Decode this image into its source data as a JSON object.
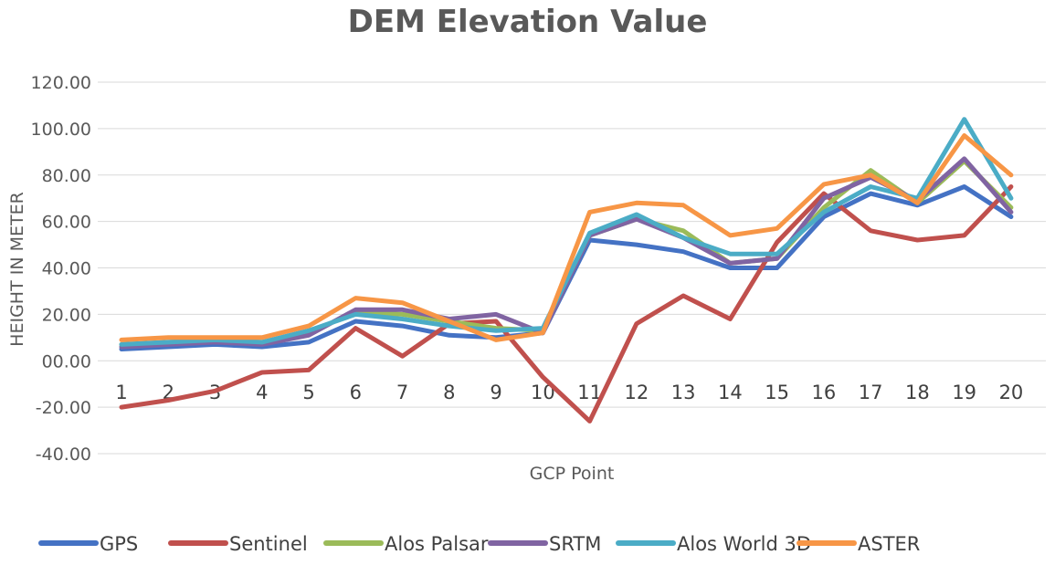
{
  "chart_data": {
    "type": "line",
    "title": "DEM Elevation Value",
    "xlabel": "GCP Point",
    "ylabel": "HEIGHT IN METER",
    "categories": [
      "1",
      "2",
      "3",
      "4",
      "5",
      "6",
      "7",
      "8",
      "9",
      "10",
      "11",
      "12",
      "13",
      "14",
      "15",
      "16",
      "17",
      "18",
      "19",
      "20"
    ],
    "y_tick_labels": [
      "-40.00",
      "-20.00",
      "00.00",
      "20.00",
      "40.00",
      "60.00",
      "80.00",
      "100.00",
      "120.00"
    ],
    "ylim": [
      -40,
      120
    ],
    "grid": true,
    "legend_position": "bottom",
    "series": [
      {
        "name": "GPS",
        "color": "#4472C4",
        "values": [
          5,
          6,
          7,
          6,
          8,
          17,
          15,
          11,
          10,
          12,
          52,
          50,
          47,
          40,
          40,
          62,
          72,
          67,
          75,
          62
        ]
      },
      {
        "name": "Sentinel",
        "color": "#C0504D",
        "values": [
          -20,
          -17,
          -13,
          -5,
          -4,
          14,
          2,
          16,
          17,
          -7,
          -26,
          16,
          28,
          18,
          51,
          72,
          56,
          52,
          54,
          75
        ]
      },
      {
        "name": "Alos Palsar",
        "color": "#9BBB59",
        "values": [
          7,
          8,
          9,
          8,
          12,
          21,
          20,
          17,
          14,
          13,
          54,
          61,
          56,
          42,
          44,
          66,
          82,
          68,
          86,
          66
        ]
      },
      {
        "name": "SRTM",
        "color": "#8064A2",
        "values": [
          6,
          7,
          8,
          7,
          11,
          22,
          22,
          18,
          20,
          12,
          54,
          61,
          53,
          42,
          44,
          70,
          79,
          69,
          87,
          64
        ]
      },
      {
        "name": "Alos World 3D",
        "color": "#4BACC6",
        "values": [
          7,
          8,
          9,
          8,
          13,
          20,
          18,
          15,
          13,
          14,
          55,
          63,
          53,
          46,
          46,
          64,
          75,
          70,
          104,
          70
        ]
      },
      {
        "name": "ASTER",
        "color": "#F79646",
        "values": [
          9,
          10,
          10,
          10,
          15,
          27,
          25,
          17,
          9,
          12,
          64,
          68,
          67,
          54,
          57,
          76,
          80,
          68,
          97,
          80
        ]
      }
    ]
  }
}
